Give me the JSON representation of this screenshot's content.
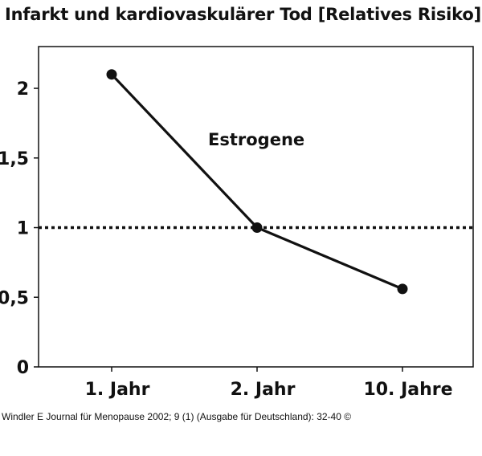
{
  "chart_data": {
    "type": "line",
    "title": "Infarkt und kardiovaskulärer Tod [Relatives Risiko]",
    "categories": [
      "1. Jahr",
      "2. Jahr",
      "10. Jahre"
    ],
    "series": [
      {
        "name": "Estrogene",
        "values": [
          2.1,
          1.0,
          0.56
        ]
      }
    ],
    "reference_line": {
      "value": 1,
      "style": "dotted"
    },
    "ylim": [
      0,
      2.3
    ],
    "yticks": [
      0,
      0.5,
      1,
      1.5,
      2
    ],
    "ytick_labels": [
      "0",
      "0,5",
      "1",
      "1,5",
      "2"
    ],
    "annotation": "Estrogene",
    "xlabel": "",
    "ylabel": ""
  },
  "citation": "Windler E Journal für Menopause 2002; 9 (1) (Ausgabe für Deutschland): 32-40 ©"
}
